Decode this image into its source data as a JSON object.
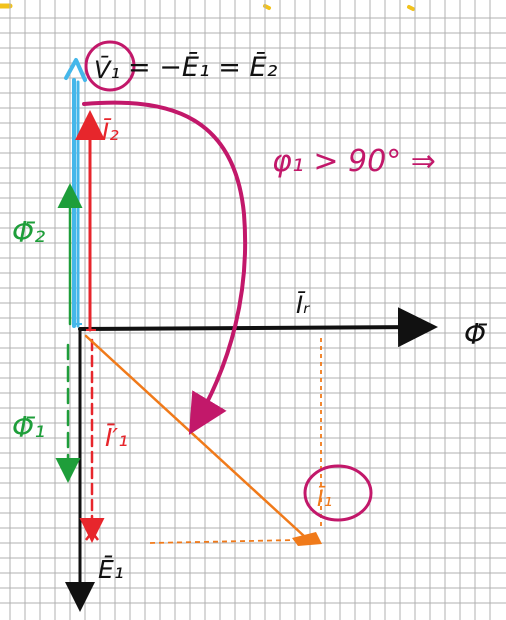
{
  "labels": {
    "v1_voltage": "V̄₁",
    "equation_rhs": "= −Ē₁ = Ē₂",
    "i2": "Ī₂",
    "phi1_statement": "φ₁ > 90° ⇒",
    "ir": "Īᵣ",
    "phi_main": "Φ̄",
    "phi2": "Φ̄₂",
    "phi1": "Φ̄₁",
    "i1_prime": "Ī′₁",
    "i1": "Ī₁",
    "e1": "Ē₁"
  },
  "colors": {
    "background": "#ffffff",
    "grid": "#b0b0b0",
    "blue": "#45b7ea",
    "magenta": "#c2186a",
    "red": "#e7262c",
    "green": "#1e9e3a",
    "black": "#111111",
    "orange": "#f07a1a",
    "top_strokes": "#f2c21b"
  }
}
